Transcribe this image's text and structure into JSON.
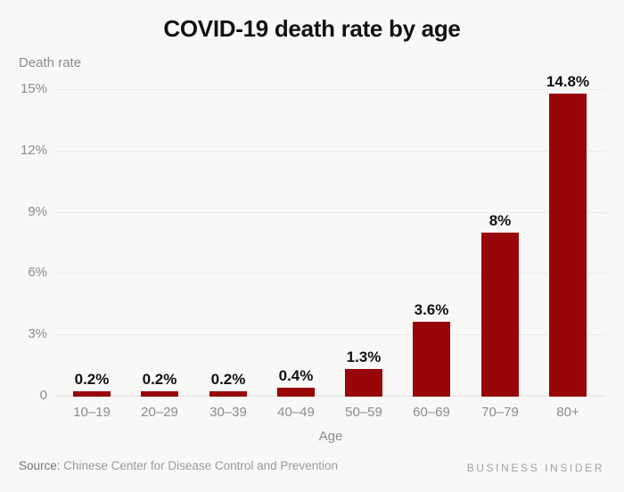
{
  "title": "COVID-19 death rate by age",
  "y_axis_title": "Death rate",
  "x_axis_title": "Age",
  "source": {
    "label": "Source:",
    "text": "Chinese Center for Disease Control and Prevention"
  },
  "brand": "BUSINESS INSIDER",
  "colors": {
    "background": "#f8f8f6",
    "bar": "#980609",
    "gridline": "#ebebe9",
    "zero_line": "#e0e0de",
    "axis_text": "#8c8c8c",
    "value_text": "#121212"
  },
  "chart_data": {
    "type": "bar",
    "title": "COVID-19 death rate by age",
    "xlabel": "Age",
    "ylabel": "Death rate",
    "categories": [
      "10–19",
      "20–29",
      "30–39",
      "40–49",
      "50–59",
      "60–69",
      "70–79",
      "80+"
    ],
    "values": [
      0.2,
      0.2,
      0.2,
      0.4,
      1.3,
      3.6,
      8,
      14.8
    ],
    "value_labels": [
      "0.2%",
      "0.2%",
      "0.2%",
      "0.4%",
      "1.3%",
      "3.6%",
      "8%",
      "14.8%"
    ],
    "ylim": [
      0,
      15
    ],
    "yticks": [
      0,
      3,
      6,
      9,
      12,
      15
    ],
    "ytick_labels": [
      "0",
      "3%",
      "6%",
      "9%",
      "12%",
      "15%"
    ],
    "grid": true,
    "legend": false,
    "bar_color": "#980609"
  }
}
